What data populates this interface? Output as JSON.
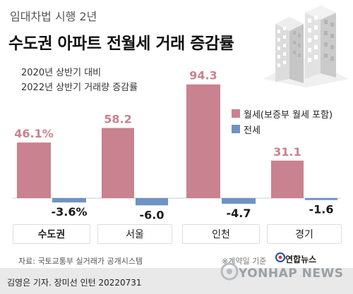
{
  "supertitle": "임대차법 시행 2년",
  "title": "수도권 아파트 전월세 거래 증감률",
  "subtitle_lines": [
    "2020년 상반기 대비",
    "2022년 상반기 거래량 증감률"
  ],
  "source": "자료: 국토교통부 실거래가 공개시스템",
  "note": "※계약일 기준",
  "credit": "김영은 기자. 장미선 인턴  20220731",
  "brand": {
    "ko": "연합뉴스",
    "en": "YONHAP NEWS"
  },
  "icons": [
    "apartment-buildings-icon",
    "yonhap-logo-icon",
    "watermark-icon"
  ],
  "colors": {
    "monthly": "#c9828f",
    "jeonse": "#6f93c4",
    "accent_label": "#c9828f"
  },
  "chart_data": {
    "type": "bar",
    "categories": [
      "수도권",
      "서울",
      "인천",
      "경기"
    ],
    "series": [
      {
        "name": "월세(보증부 월세 포함)",
        "values": [
          46.1,
          58.2,
          94.3,
          31.1
        ],
        "labels": [
          "46.1%",
          "58.2",
          "94.3",
          "31.1"
        ]
      },
      {
        "name": "전세",
        "values": [
          -3.6,
          -6.0,
          -4.7,
          -1.6
        ],
        "labels": [
          "-3.6%",
          "-6.0",
          "-4.7",
          "-1.6"
        ]
      }
    ],
    "ylim": [
      -10,
      100
    ],
    "legend": "right",
    "grid": false
  }
}
